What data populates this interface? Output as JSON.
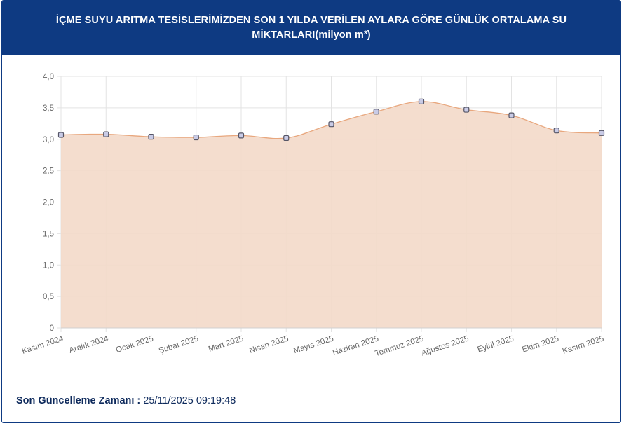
{
  "header": {
    "title_line1": "İÇME SUYU ARITMA TESİSLERİMİZDEN SON 1 YILDA VERİLEN AYLARA GÖRE GÜNLÜK ORTALAMA SU",
    "title_line2": "MİKTARLARI(milyon m³)"
  },
  "footer": {
    "label": "Son Güncelleme Zamanı :",
    "value": "25/11/2025 09:19:48"
  },
  "colors": {
    "header_bg": "#0e3a82",
    "area_fill": "#f3d9c9",
    "line": "#e8a77e",
    "marker_fill": "#c9cbe6",
    "marker_stroke": "#555566"
  },
  "chart_data": {
    "type": "area",
    "categories": [
      "Kasım 2024",
      "Aralık 2024",
      "Ocak 2025",
      "Şubat 2025",
      "Mart 2025",
      "Nisan 2025",
      "Mayıs 2025",
      "Haziran 2025",
      "Temmuz 2025",
      "Ağustos 2025",
      "Eylül 2025",
      "Ekim 2025",
      "Kasım 2025"
    ],
    "values": [
      3.07,
      3.08,
      3.04,
      3.03,
      3.06,
      3.02,
      3.24,
      3.44,
      3.6,
      3.47,
      3.38,
      3.14,
      3.1
    ],
    "y_ticks": [
      "0",
      "0,5",
      "1,0",
      "1,5",
      "2,0",
      "2,5",
      "3,0",
      "3,5",
      "4,0"
    ],
    "ylim": [
      0,
      4
    ],
    "grid": true
  }
}
